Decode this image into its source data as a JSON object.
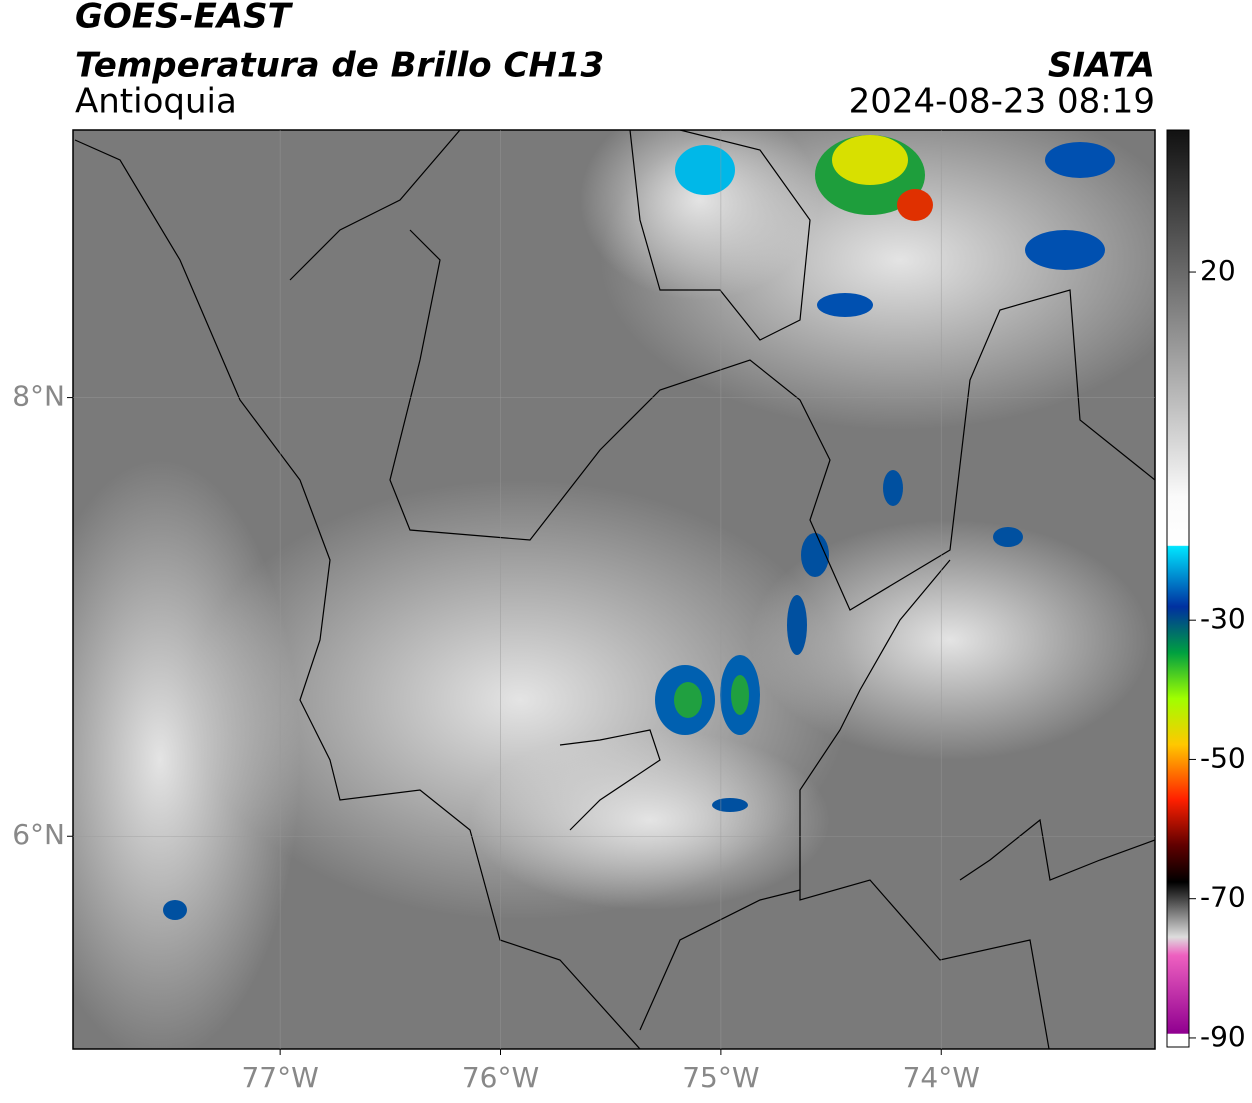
{
  "header": {
    "title": "GOES-EAST",
    "subtitle": "Temperatura de Brillo CH13",
    "region": "Antioquia",
    "source": "SIATA",
    "datetime": "2024-08-23 08:19"
  },
  "map": {
    "xlim": [
      -77.94,
      -73.03
    ],
    "ylim": [
      5.03,
      9.22
    ],
    "xticks": [
      {
        "value": -77,
        "label": "77°W"
      },
      {
        "value": -76,
        "label": "76°W"
      },
      {
        "value": -75,
        "label": "75°W"
      },
      {
        "value": -74,
        "label": "74°W"
      }
    ],
    "yticks": [
      {
        "value": 6,
        "label": "6°N"
      },
      {
        "value": 8,
        "label": "8°N"
      }
    ],
    "grid": true
  },
  "colorbar": {
    "lim": [
      -91.3,
      40.4
    ],
    "ticks": [
      20,
      -30,
      -50,
      -70,
      -90
    ]
  }
}
